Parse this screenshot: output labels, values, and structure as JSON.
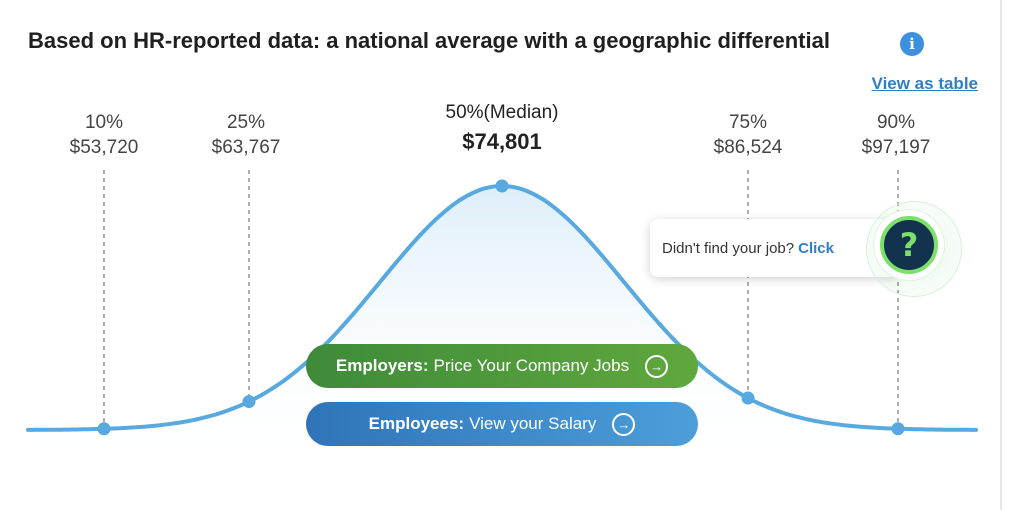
{
  "header": {
    "title": "Based on HR-reported data: a national average with a geographic differential",
    "info_icon": "info-icon",
    "view_table_label": "View as table"
  },
  "chart_data": {
    "type": "line",
    "title": "Based on HR-reported data: a national average with a geographic differential",
    "percentiles": [
      {
        "label": "10%",
        "salary": "$53,720",
        "value": 53720
      },
      {
        "label": "25%",
        "salary": "$63,767",
        "value": 63767
      },
      {
        "label": "50%(Median)",
        "salary": "$74,801",
        "value": 74801
      },
      {
        "label": "75%",
        "salary": "$86,524",
        "value": 86524
      },
      {
        "label": "90%",
        "salary": "$97,197",
        "value": 97197
      }
    ],
    "curve_color": "#58a9df",
    "xlabel": "",
    "ylabel": "",
    "grid": false
  },
  "buttons": {
    "employers_bold": "Employers:",
    "employers_text": "Price Your Company Jobs",
    "employees_bold": "Employees:",
    "employees_text": "View your Salary",
    "arrow_icon": "arrow-right-circle-icon"
  },
  "help": {
    "text": "Didn't find your job?",
    "link": "Click",
    "icon": "question-mark-icon",
    "icon_glyph": "?"
  },
  "colors": {
    "accent": "#2f7ec9",
    "employers_button": "#4a9a3c",
    "employees_button": "#3d8acb",
    "help_dark": "#12324e",
    "help_green": "#7ce06a"
  }
}
